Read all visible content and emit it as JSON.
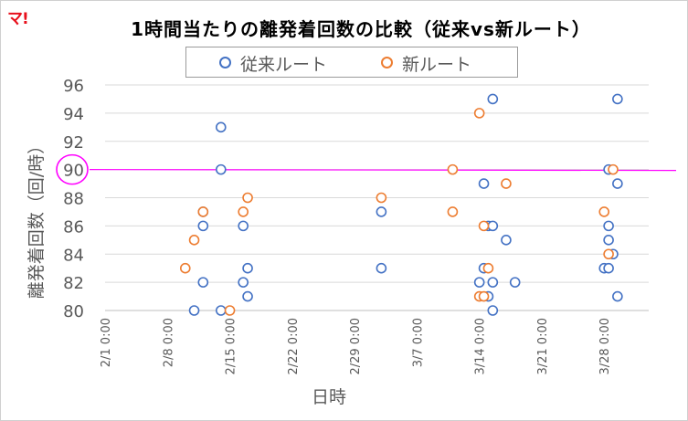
{
  "brand": {
    "logo_text": "マ!",
    "logo_color": "#e8101c"
  },
  "chart_data": {
    "type": "scatter",
    "title": "1時間当たりの離発着回数の比較（従来vs新ルート）",
    "xlabel": "日時",
    "ylabel": "離発着回数（回/時）",
    "ylim": [
      80,
      96
    ],
    "yticks": [
      "80",
      "82",
      "84",
      "86",
      "88",
      "90",
      "92",
      "94",
      "96"
    ],
    "xlim": [
      "2/1 0:00",
      "4/2 0:00"
    ],
    "xticks": [
      "2/1 0:00",
      "2/8 0:00",
      "2/15 0:00",
      "2/22 0:00",
      "2/29 0:00",
      "3/7 0:00",
      "3/14 0:00",
      "3/21 0:00",
      "3/28 0:00"
    ],
    "legend_position": "top",
    "reference_line": {
      "value": 90,
      "color": "#ff00ff",
      "highlighted_tick": "90"
    },
    "series": [
      {
        "name": "従来ルート",
        "color": "#4472c4",
        "points": [
          [
            "2/11 0:00",
            80
          ],
          [
            "2/12 0:00",
            82
          ],
          [
            "2/12 0:00",
            86
          ],
          [
            "2/12 0:00",
            87
          ],
          [
            "2/14 0:00",
            80
          ],
          [
            "2/14 0:00",
            90
          ],
          [
            "2/14 0:00",
            93
          ],
          [
            "2/16 12:00",
            82
          ],
          [
            "2/16 12:00",
            86
          ],
          [
            "2/17 0:00",
            81
          ],
          [
            "2/17 0:00",
            83
          ],
          [
            "3/3 0:00",
            83
          ],
          [
            "3/3 0:00",
            87
          ],
          [
            "3/14 0:00",
            82
          ],
          [
            "3/14 12:00",
            83
          ],
          [
            "3/14 12:00",
            89
          ],
          [
            "3/15 0:00",
            81
          ],
          [
            "3/15 0:00",
            86
          ],
          [
            "3/15 12:00",
            80
          ],
          [
            "3/15 12:00",
            82
          ],
          [
            "3/15 12:00",
            86
          ],
          [
            "3/15 12:00",
            95
          ],
          [
            "3/17 0:00",
            85
          ],
          [
            "3/18 0:00",
            82
          ],
          [
            "3/28 0:00",
            83
          ],
          [
            "3/28 12:00",
            83
          ],
          [
            "3/28 12:00",
            85
          ],
          [
            "3/28 12:00",
            86
          ],
          [
            "3/28 12:00",
            90
          ],
          [
            "3/29 0:00",
            84
          ],
          [
            "3/29 12:00",
            81
          ],
          [
            "3/29 12:00",
            89
          ],
          [
            "3/29 12:00",
            95
          ]
        ]
      },
      {
        "name": "新ルート",
        "color": "#ed7d31",
        "points": [
          [
            "2/10 0:00",
            83
          ],
          [
            "2/11 0:00",
            85
          ],
          [
            "2/12 0:00",
            87
          ],
          [
            "2/15 0:00",
            80
          ],
          [
            "2/16 12:00",
            87
          ],
          [
            "2/17 0:00",
            88
          ],
          [
            "3/3 0:00",
            88
          ],
          [
            "3/11 0:00",
            87
          ],
          [
            "3/11 0:00",
            90
          ],
          [
            "3/14 0:00",
            81
          ],
          [
            "3/14 0:00",
            94
          ],
          [
            "3/14 12:00",
            81
          ],
          [
            "3/14 12:00",
            86
          ],
          [
            "3/15 0:00",
            83
          ],
          [
            "3/17 0:00",
            89
          ],
          [
            "3/28 0:00",
            87
          ],
          [
            "3/28 12:00",
            84
          ],
          [
            "3/29 0:00",
            90
          ]
        ]
      }
    ]
  }
}
